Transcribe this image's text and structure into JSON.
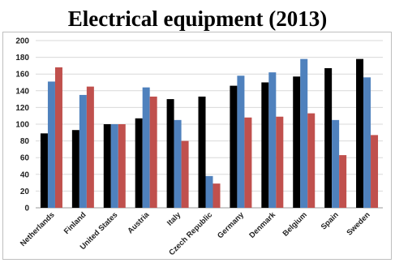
{
  "chart_data": {
    "type": "bar",
    "title": "Electrical equipment (2013)",
    "xlabel": "",
    "ylabel": "",
    "ylim": [
      0,
      200
    ],
    "yticks": [
      0,
      20,
      40,
      60,
      80,
      100,
      120,
      140,
      160,
      180,
      200
    ],
    "grid": true,
    "legend": "none",
    "categories": [
      "Netherlands",
      "Finland",
      "United States",
      "Austria",
      "Italy",
      "Czech Republic",
      "Germany",
      "Denmark",
      "Belgium",
      "Spain",
      "Sweden"
    ],
    "series": [
      {
        "color": "#000000",
        "values": [
          89,
          93,
          100,
          107,
          130,
          133,
          146,
          150,
          157,
          167,
          178
        ]
      },
      {
        "color": "#4f81bd",
        "values": [
          151,
          135,
          100,
          144,
          105,
          38,
          158,
          162,
          178,
          105,
          156
        ]
      },
      {
        "color": "#c0504d",
        "values": [
          168,
          145,
          100,
          133,
          80,
          29,
          108,
          109,
          113,
          63,
          87
        ]
      }
    ]
  }
}
